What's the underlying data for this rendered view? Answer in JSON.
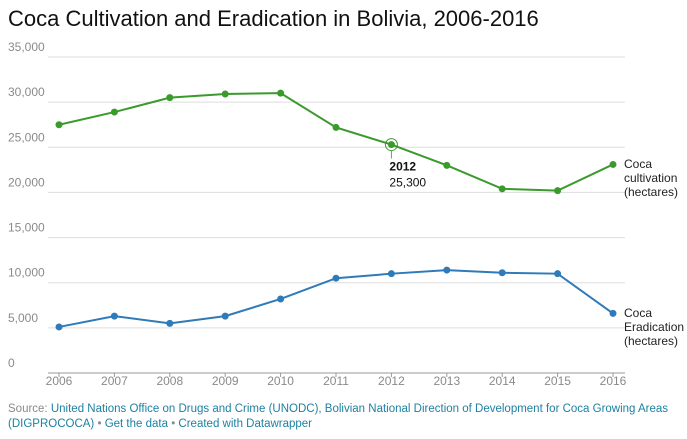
{
  "chart_data": {
    "type": "line",
    "title": "Coca Cultivation and Eradication in Bolivia, 2006-2016",
    "x": [
      2006,
      2007,
      2008,
      2009,
      2010,
      2011,
      2012,
      2013,
      2014,
      2015,
      2016
    ],
    "xlim": [
      2006,
      2016
    ],
    "xticks": [
      2006,
      2007,
      2008,
      2009,
      2010,
      2011,
      2012,
      2013,
      2014,
      2015,
      2016
    ],
    "ylim": [
      0,
      35000
    ],
    "yticks": [
      0,
      {
        "value": 5000,
        "label": "5,000"
      },
      {
        "value": 10000,
        "label": "10,000"
      },
      {
        "value": 15000,
        "label": "15,000"
      },
      {
        "value": 20000,
        "label": "20,000"
      },
      {
        "value": 25000,
        "label": "25,000"
      },
      {
        "value": 30000,
        "label": "30,000"
      },
      {
        "value": 35000,
        "label": "35,000"
      }
    ],
    "grid": true,
    "series": [
      {
        "name": "Coca cultivation (hectares)",
        "color": "#3a9a2c",
        "values": [
          27500,
          28900,
          30500,
          30900,
          31000,
          27200,
          25300,
          23000,
          20400,
          20200,
          23100
        ]
      },
      {
        "name": "Coca Eradication (hectares)",
        "color": "#2f7ab8",
        "values": [
          5100,
          6300,
          5500,
          6300,
          8200,
          10500,
          11000,
          11400,
          11100,
          11000,
          6600
        ]
      }
    ],
    "annotation": {
      "series": 0,
      "index": 6,
      "title": "2012",
      "text": "25,300"
    }
  },
  "footer": {
    "source_label": "Source:",
    "source": "United Nations Office on Drugs and Crime (UNODC), Bolivian National Direction of Development for Coca Growing Areas (DIGPROCOCA)",
    "separator": "•",
    "get_data": "Get the data",
    "credit": "Created with Datawrapper"
  }
}
